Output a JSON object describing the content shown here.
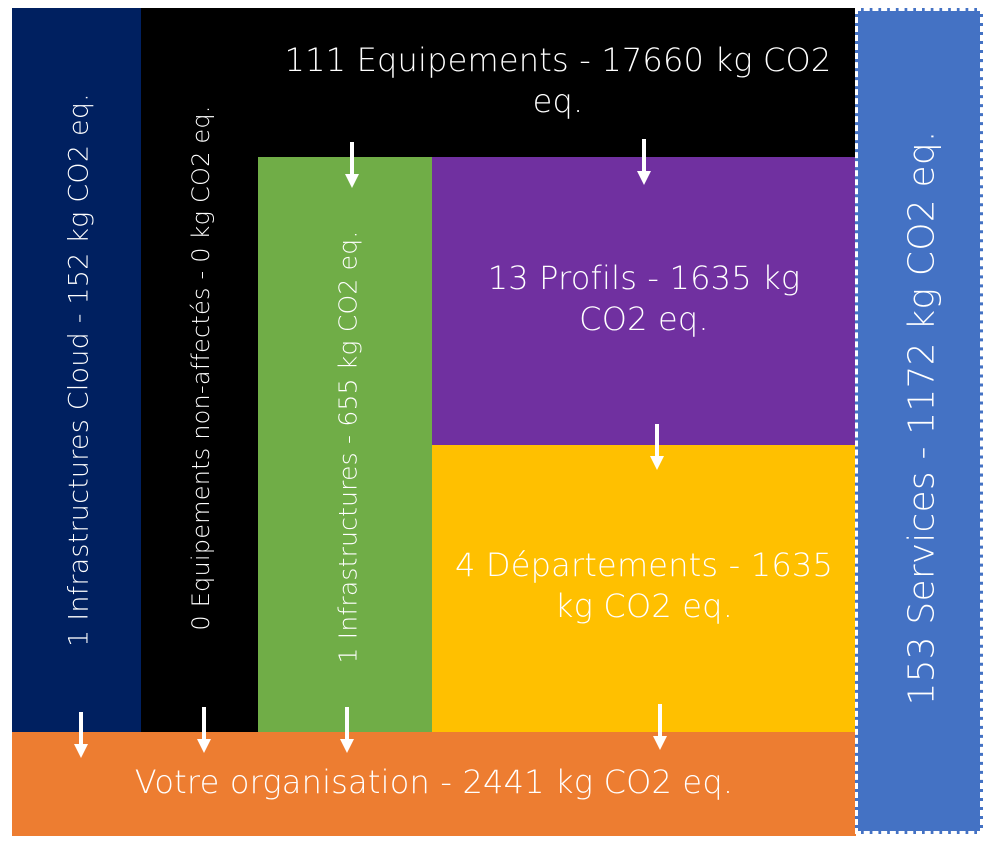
{
  "blocks": {
    "cloud": {
      "label": "1 Infrastructures Cloud  - 152 kg CO2 eq.",
      "color": "#002060"
    },
    "unassigned": {
      "label": "0 Equipements non-affectés - 0 kg CO2 eq.",
      "color": "#000000"
    },
    "equipments": {
      "label": "111 Equipements - 17660 kg CO2 eq.",
      "color": "#000000"
    },
    "infrastructures": {
      "label": "1 Infrastructures - 655 kg CO2 eq.",
      "color": "#70AD47"
    },
    "profiles": {
      "label": "13 Profils - 1635 kg CO2 eq.",
      "color": "#7030A0"
    },
    "departments": {
      "label": "4 Départements - 1635 kg CO2 eq.",
      "color": "#FFC000"
    },
    "organisation": {
      "label": "Votre organisation - 2441 kg CO2 eq.",
      "color": "#ED7D31"
    },
    "services": {
      "label": "153 Services - 1172 kg CO2 eq.",
      "color": "#4472C4",
      "border": "dashed"
    }
  },
  "arrows": {
    "color": "#ffffff",
    "icon": "down-arrow-icon"
  }
}
